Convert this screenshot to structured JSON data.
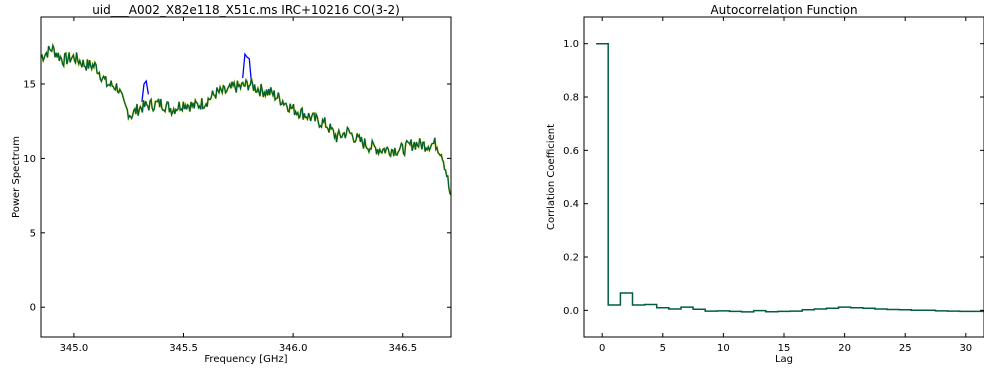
{
  "chart_data": [
    {
      "type": "line",
      "title": "uid___A002_X82e118_X51c.ms IRC+10216 CO(3-2)",
      "xlabel": "Frequency [GHz]",
      "ylabel": "Power Spectrum",
      "xlim": [
        344.85,
        346.72
      ],
      "ylim": [
        -2,
        19.5
      ],
      "xticks": [
        "345.0",
        "345.5",
        "346.0",
        "346.5"
      ],
      "xtick_values": [
        345.0,
        345.5,
        346.0,
        346.5
      ],
      "yticks": [
        "0",
        "5",
        "10",
        "15"
      ],
      "ytick_values": [
        0,
        5,
        10,
        15
      ],
      "grid": false,
      "colors": {
        "raw": "#0000ff",
        "masked": "#cccc00",
        "smooth": "#005f3a"
      },
      "series": [
        {
          "x": [
            344.85,
            344.9,
            344.95,
            345.0,
            345.05,
            345.1,
            345.15,
            345.2,
            345.23,
            345.26,
            345.3,
            345.35,
            345.4,
            345.45,
            345.5,
            345.55,
            345.6,
            345.65,
            345.7,
            345.73,
            345.76,
            345.8,
            345.85,
            345.9,
            345.95,
            346.0,
            346.05,
            346.1,
            346.15,
            346.2,
            346.25,
            346.3,
            346.35,
            346.4,
            346.45,
            346.5,
            346.55,
            346.6,
            346.65,
            346.68,
            346.7,
            346.72
          ],
          "y": [
            16.8,
            17.4,
            16.6,
            16.8,
            16.3,
            16.2,
            15.0,
            14.8,
            13.5,
            12.9,
            13.4,
            13.6,
            13.7,
            13.3,
            13.7,
            13.5,
            13.8,
            14.4,
            14.5,
            14.8,
            14.8,
            15.0,
            14.6,
            14.4,
            13.9,
            13.3,
            13.0,
            12.6,
            12.3,
            11.4,
            11.8,
            11.2,
            10.8,
            10.6,
            10.6,
            10.6,
            11.0,
            10.9,
            11.0,
            10.3,
            9.0,
            7.2
          ]
        },
        {
          "x": [
            345.31,
            345.32,
            345.33,
            345.34,
            345.77,
            345.78,
            345.79,
            345.8,
            345.81
          ],
          "y": [
            13.8,
            15.0,
            15.2,
            14.3,
            15.4,
            17.0,
            16.8,
            16.7,
            15.0
          ]
        }
      ]
    },
    {
      "type": "line",
      "title": "Autocorrelation Function",
      "xlabel": "Lag",
      "ylabel": "Corrlation Coefficient",
      "xlim": [
        -1.5,
        31.5
      ],
      "ylim": [
        -0.1,
        1.1
      ],
      "xticks": [
        "0",
        "5",
        "10",
        "15",
        "20",
        "25",
        "30"
      ],
      "xtick_values": [
        0,
        5,
        10,
        15,
        20,
        25,
        30
      ],
      "yticks": [
        "0.0",
        "0.2",
        "0.4",
        "0.6",
        "0.8",
        "1.0"
      ],
      "ytick_values": [
        0.0,
        0.2,
        0.4,
        0.6,
        0.8,
        1.0
      ],
      "grid": false,
      "step": true,
      "colors": {
        "line": "#005f3a"
      },
      "series": [
        {
          "x": [
            0,
            1,
            2,
            3,
            4,
            5,
            6,
            7,
            8,
            9,
            10,
            11,
            12,
            13,
            14,
            15,
            16,
            17,
            18,
            19,
            20,
            21,
            22,
            23,
            24,
            25,
            26,
            27,
            28,
            29,
            30,
            31
          ],
          "y": [
            1.0,
            0.02,
            0.065,
            0.02,
            0.022,
            0.01,
            0.005,
            0.012,
            0.004,
            -0.003,
            -0.002,
            -0.004,
            -0.006,
            -0.001,
            -0.005,
            -0.004,
            -0.003,
            0.002,
            0.005,
            0.008,
            0.012,
            0.01,
            0.008,
            0.005,
            0.003,
            0.002,
            0.0,
            0.0,
            -0.002,
            -0.003,
            -0.004,
            -0.004
          ]
        }
      ]
    }
  ]
}
